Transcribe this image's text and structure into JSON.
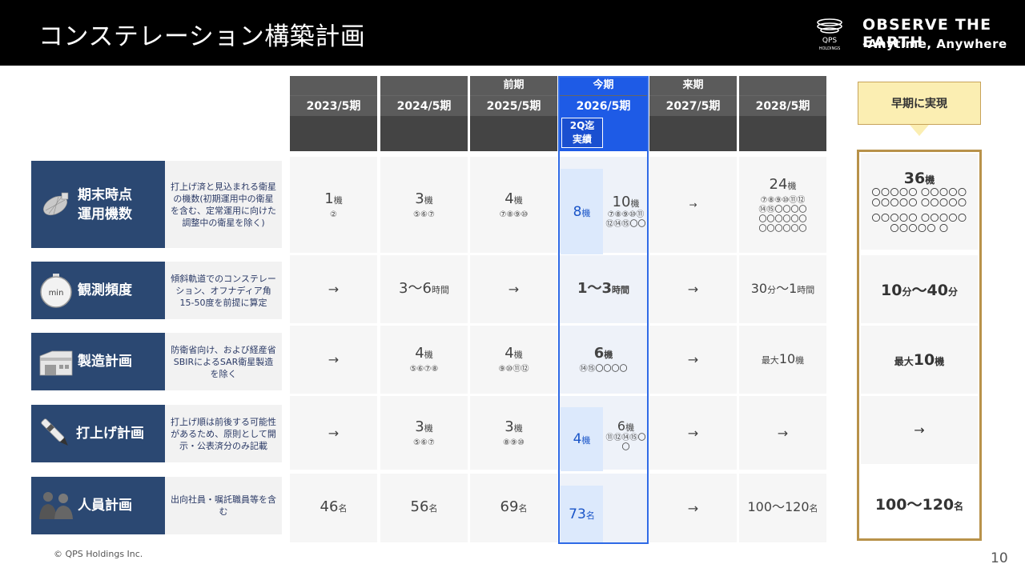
{
  "header": {
    "title": "コンステレーション構築計画",
    "brand_line1": "OBSERVE THE EARTH",
    "brand_line2": "-Anytime, Anywhere",
    "logo_text1": "QPS",
    "logo_text2": "HOLDINGS"
  },
  "columns": [
    {
      "phase": "",
      "label": "2023/5期"
    },
    {
      "phase": "",
      "label": "2024/5期"
    },
    {
      "phase": "前期",
      "label": "2025/5期"
    },
    {
      "phase": "今期",
      "label": "2026/5期",
      "q2_label_1": "2Q迄",
      "q2_label_2": "実績"
    },
    {
      "phase": "来期",
      "label": "2027/5期"
    },
    {
      "phase": "",
      "label": "2028/5期"
    }
  ],
  "rows": [
    {
      "label_1": "期末時点",
      "label_2": "運用機数",
      "note": "打上げ済と見込まれる衛星の機数(初期運用中の衛星を含む、定常運用に向けた調整中の衛星を除く)",
      "icon": "satellite-icon"
    },
    {
      "label_1": "観測頻度",
      "label_2": "",
      "note": "傾斜軌道でのコンステレーション、オフナディア角15-50度を前提に算定",
      "icon": "stopwatch-icon",
      "icon_text": "min"
    },
    {
      "label_1": "製造計画",
      "label_2": "",
      "note": "防衛省向け、および経産省SBIRによるSAR衛星製造を除く",
      "icon": "factory-icon"
    },
    {
      "label_1": "打上げ計画",
      "label_2": "",
      "note": "打上げ順は前後する可能性があるため、原則として開示・公表済分のみ記載",
      "icon": "pen-icon"
    },
    {
      "label_1": "人員計画",
      "label_2": "",
      "note": "出向社員・嘱託職員等を含む",
      "icon": "people-icon"
    }
  ],
  "cells": {
    "operational": {
      "c2023": {
        "num": "1",
        "unit": "機",
        "sub": "②"
      },
      "c2024": {
        "num": "3",
        "unit": "機",
        "sub": "⑤⑥⑦"
      },
      "c2025": {
        "num": "4",
        "unit": "機",
        "sub": "⑦⑧⑨⑩"
      },
      "c2026_actual": {
        "num": "8",
        "unit": "機"
      },
      "c2026": {
        "num": "10",
        "unit": "機",
        "sub": "⑦⑧⑨⑩⑪⑫⑭⑮〇〇"
      },
      "c2027": {
        "text": "→"
      },
      "c2028": {
        "num": "24",
        "unit": "機",
        "sub": "⑦⑧⑨⑩⑪⑫⑭⑮〇〇〇〇〇〇〇〇〇〇〇〇〇〇〇〇"
      }
    },
    "frequency": {
      "c2023": {
        "text": "→"
      },
      "c2024": {
        "num": "3～6",
        "unit": "時間"
      },
      "c2025": {
        "text": "→"
      },
      "c2026": {
        "num": "1～3",
        "unit": "時間"
      },
      "c2027": {
        "text": "→"
      },
      "c2028": {
        "num": "30",
        "unit": "分",
        "num2": "～1",
        "unit2": "時間"
      }
    },
    "manufacturing": {
      "c2023": {
        "text": "→"
      },
      "c2024": {
        "num": "4",
        "unit": "機",
        "sub": "⑤⑥⑦⑧"
      },
      "c2025": {
        "num": "4",
        "unit": "機",
        "sub": "⑨⑩⑪⑫"
      },
      "c2026": {
        "num": "6",
        "unit": "機",
        "sub": "⑭⑮〇〇〇〇"
      },
      "c2027": {
        "text": "→"
      },
      "c2028": {
        "prefix": "最大",
        "num": "10",
        "unit": "機"
      }
    },
    "launch": {
      "c2023": {
        "text": "→"
      },
      "c2024": {
        "num": "3",
        "unit": "機",
        "sub": "⑤⑥⑦"
      },
      "c2025": {
        "num": "3",
        "unit": "機",
        "sub": "⑧⑨⑩"
      },
      "c2026_actual": {
        "num": "4",
        "unit": "機"
      },
      "c2026": {
        "num": "6",
        "unit": "機",
        "sub": "⑪⑫⑭⑮〇〇"
      },
      "c2027": {
        "text": "→"
      },
      "c2028": {
        "text": "→"
      }
    },
    "staff": {
      "c2023": {
        "num": "46",
        "unit": "名"
      },
      "c2024": {
        "num": "56",
        "unit": "名"
      },
      "c2025": {
        "num": "69",
        "unit": "名"
      },
      "c2026_actual": {
        "num": "73",
        "unit": "名"
      },
      "c2027": {
        "text": "→"
      },
      "c2028": {
        "num": "100～120",
        "unit": "名"
      }
    }
  },
  "summary": {
    "callout": "早期に実現",
    "operational": {
      "num": "36",
      "unit": "機",
      "circles_1": "〇〇〇〇〇 〇〇〇〇〇",
      "circles_2": "〇〇〇〇〇 〇〇〇〇〇",
      "circles_3": "〇〇〇〇〇 〇〇〇〇〇",
      "circles_4": "〇〇〇〇〇 〇"
    },
    "frequency": {
      "num": "10",
      "unit": "分",
      "num2": "～40",
      "unit2": "分"
    },
    "manufacturing": {
      "prefix": "最大",
      "num": "10",
      "unit": "機"
    },
    "launch": {
      "text": "→"
    },
    "staff": {
      "num": "100～120",
      "unit": "名"
    }
  },
  "footer": {
    "copyright": "© QPS Holdings Inc.",
    "page": "10"
  },
  "colors": {
    "header_bg": "#000000",
    "row_label_bg": "#2b4872",
    "current_accent": "#1e5be6",
    "summary_border": "#b8924a",
    "callout_bg": "#fbeeb2"
  }
}
